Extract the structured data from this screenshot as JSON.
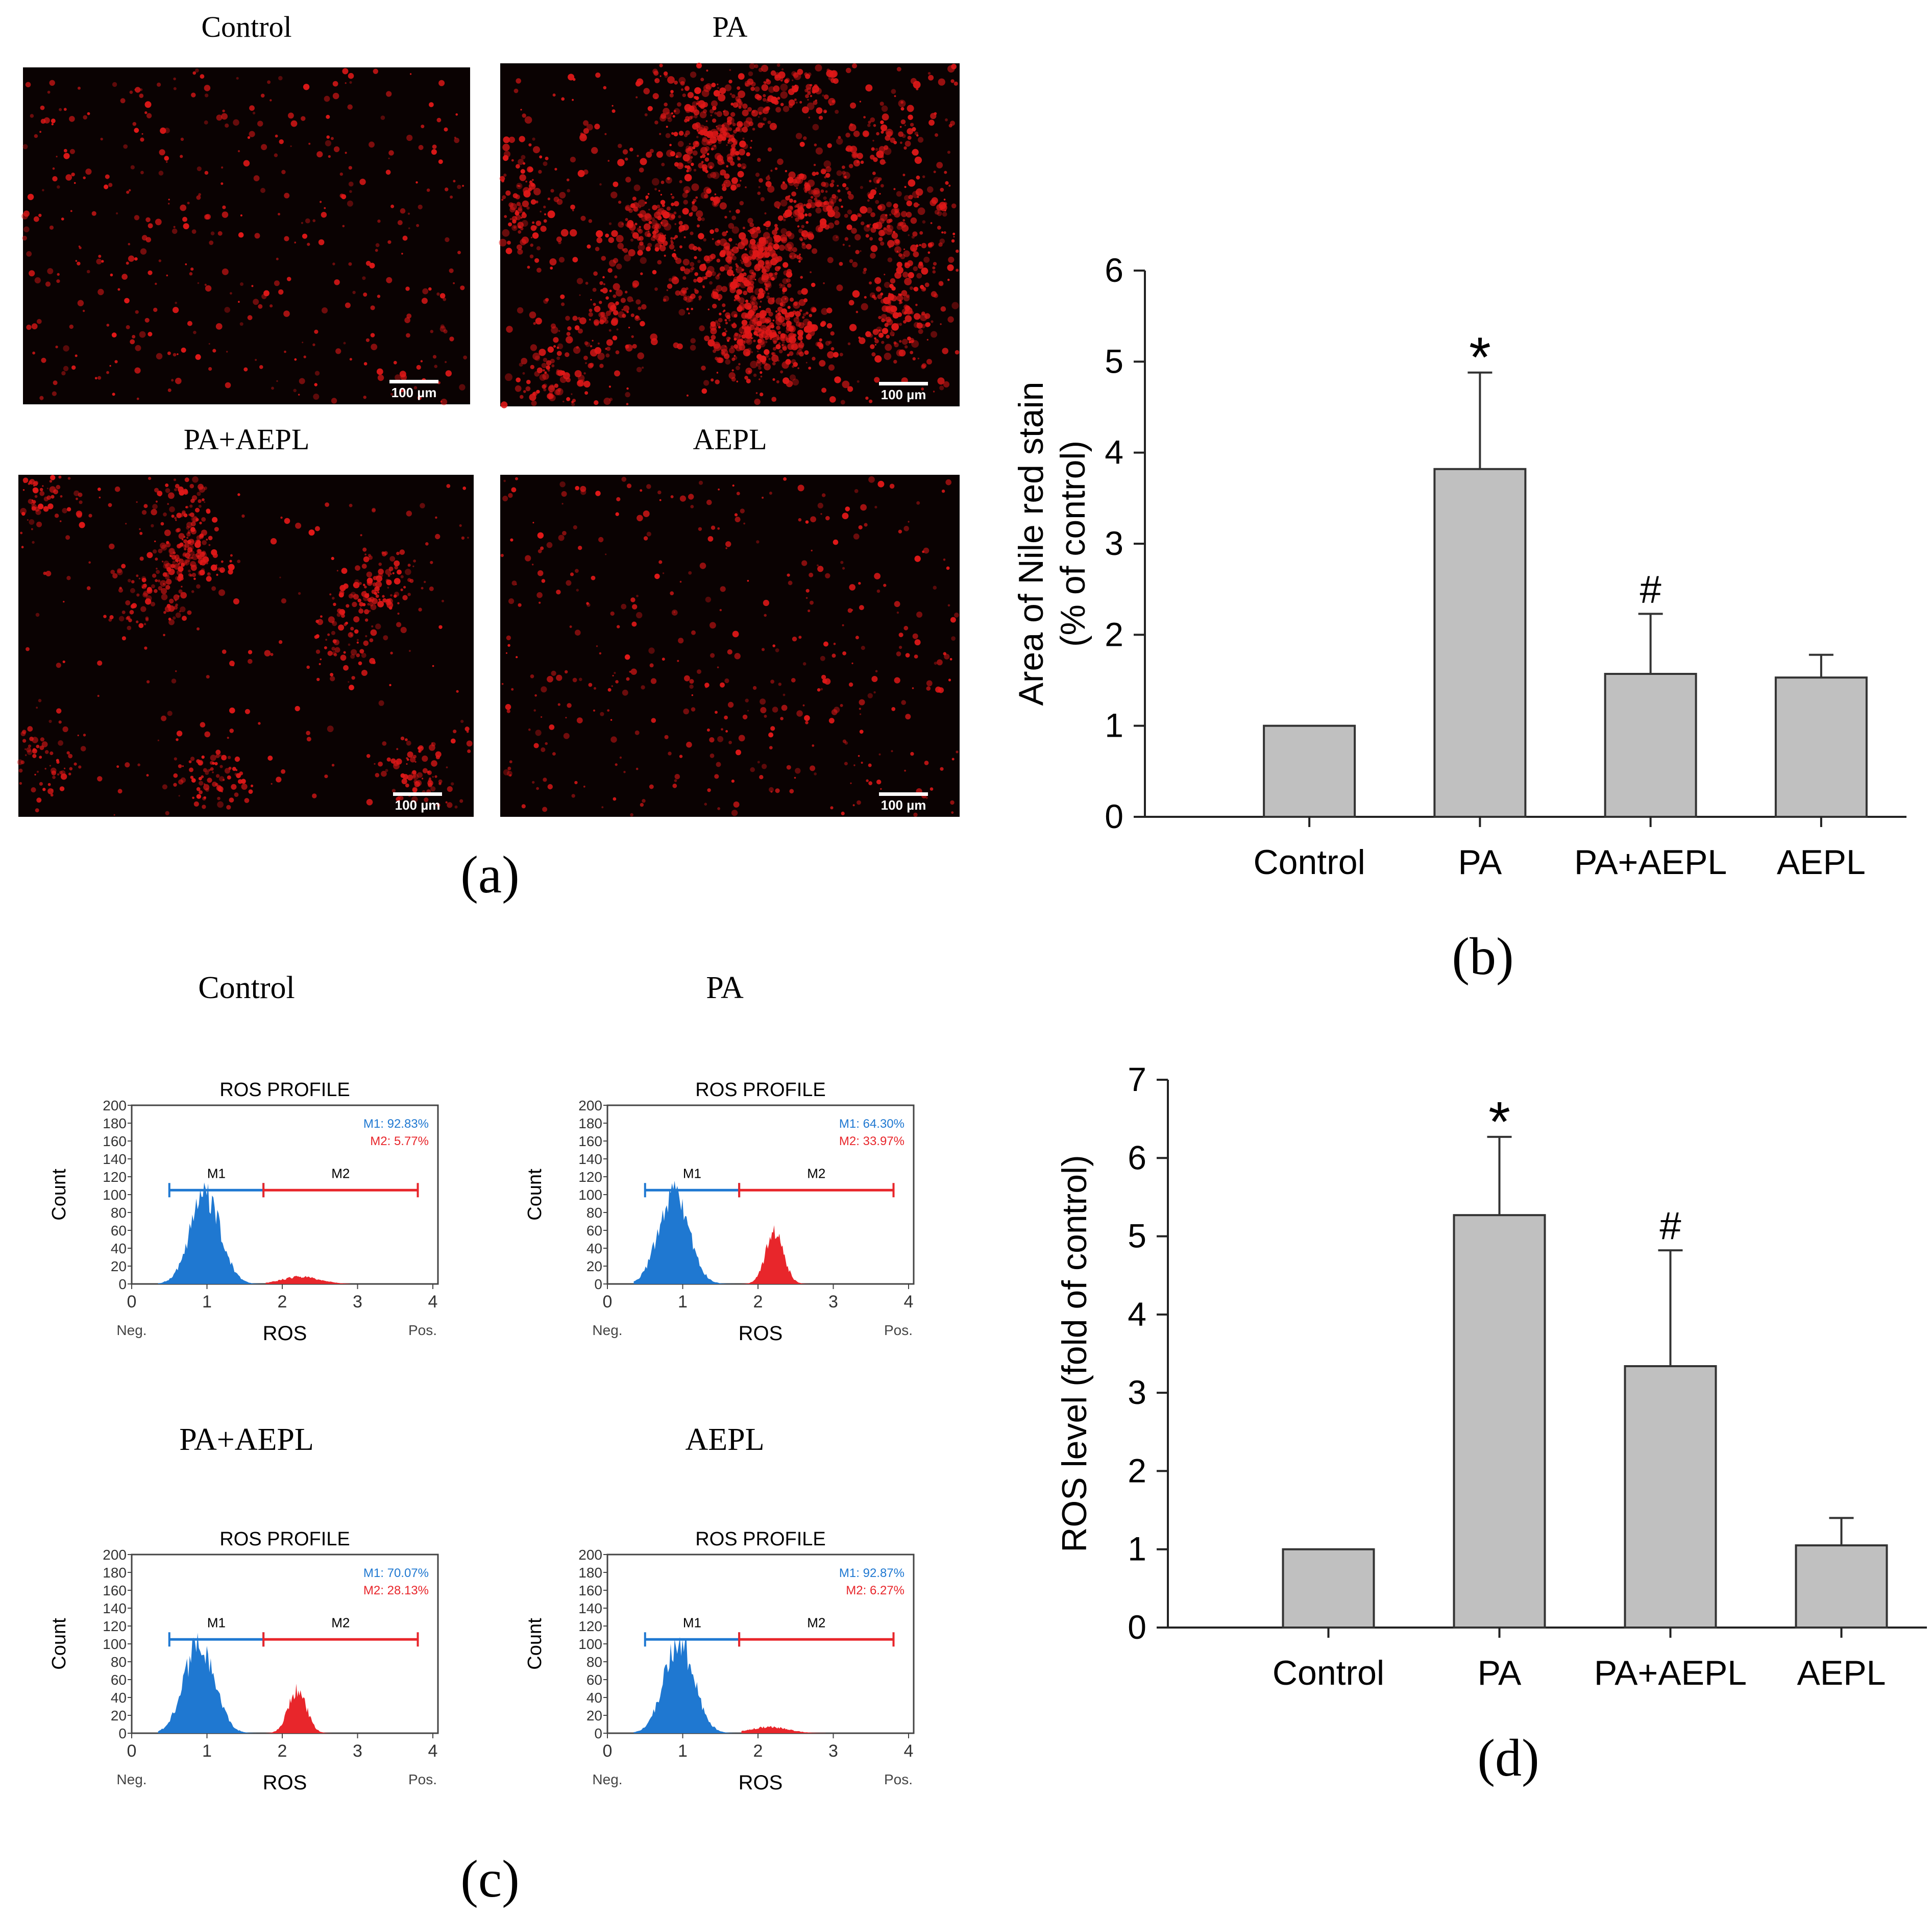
{
  "figure": {
    "panel_labels": {
      "a": "(a)",
      "b": "(b)",
      "c": "(c)",
      "d": "(d)"
    },
    "scale_bar_label": "100 µm",
    "micrographs": [
      {
        "title": "Control",
        "intensity": "low"
      },
      {
        "title": "PA",
        "intensity": "high"
      },
      {
        "title": "PA+AEPL",
        "intensity": "medium"
      },
      {
        "title": "AEPL",
        "intensity": "low"
      }
    ],
    "flow_panels": [
      {
        "title": "Control",
        "plot_title": "ROS PROFILE",
        "m1_text": "M1: 92.83%",
        "m2_text": "M2: 5.77%",
        "neg_peak_center": 0.98,
        "pos_peak_center": 2.25,
        "pos_peak_height": 8
      },
      {
        "title": "PA",
        "plot_title": "ROS PROFILE",
        "m1_text": "M1: 64.30%",
        "m2_text": "M2: 33.97%",
        "neg_peak_center": 0.88,
        "pos_peak_center": 2.22,
        "pos_peak_height": 57
      },
      {
        "title": "PA+AEPL",
        "plot_title": "ROS PROFILE",
        "m1_text": "M1: 70.07%",
        "m2_text": "M2: 28.13%",
        "neg_peak_center": 0.9,
        "pos_peak_center": 2.2,
        "pos_peak_height": 48
      },
      {
        "title": "AEPL",
        "plot_title": "ROS PROFILE",
        "m1_text": "M1: 92.87%",
        "m2_text": "M2: 6.27%",
        "neg_peak_center": 0.95,
        "pos_peak_center": 2.15,
        "pos_peak_height": 7
      }
    ],
    "flow_axes": {
      "xlabel": "ROS",
      "ylabel": "Count",
      "neg_label": "Neg.",
      "pos_label": "Pos.",
      "x_ticks": [
        0,
        1,
        2,
        3,
        4
      ],
      "y_ticks": [
        0,
        20,
        40,
        60,
        80,
        100,
        120,
        140,
        160,
        180,
        200
      ],
      "m1_label": "M1",
      "m2_label": "M2",
      "m1_range": [
        0.5,
        1.75
      ],
      "m2_range": [
        1.75,
        3.8
      ],
      "marker_y": 105
    },
    "colors": {
      "bar_fill": "#c0c0c0",
      "m1": "#1f78d1",
      "m2": "#e8262b",
      "micrograph_bg": "#0a0202",
      "dots": "#e01818"
    }
  },
  "chart_data": [
    {
      "type": "bar",
      "title": "",
      "categories": [
        "Control",
        "PA",
        "PA+AEPL",
        "AEPL"
      ],
      "values": [
        1.0,
        3.82,
        1.57,
        1.53
      ],
      "errors": [
        0,
        1.06,
        0.66,
        0.25
      ],
      "annotations": [
        "",
        "*",
        "#",
        ""
      ],
      "xlabel": "",
      "ylabel_line1": "Area of Nile red stain",
      "ylabel_line2": "(% of control)",
      "ylim": [
        0,
        6
      ],
      "yticks": [
        0,
        1,
        2,
        3,
        4,
        5,
        6
      ]
    },
    {
      "type": "bar",
      "title": "",
      "categories": [
        "Control",
        "PA",
        "PA+AEPL",
        "AEPL"
      ],
      "values": [
        1.0,
        5.27,
        3.34,
        1.05
      ],
      "errors": [
        0,
        1.0,
        1.48,
        0.35
      ],
      "annotations": [
        "",
        "*",
        "#",
        ""
      ],
      "xlabel": "",
      "ylabel_line1": "ROS level (fold of control)",
      "ylabel_line2": "",
      "ylim": [
        0,
        7
      ],
      "yticks": [
        0,
        1,
        2,
        3,
        4,
        5,
        6,
        7
      ]
    }
  ]
}
